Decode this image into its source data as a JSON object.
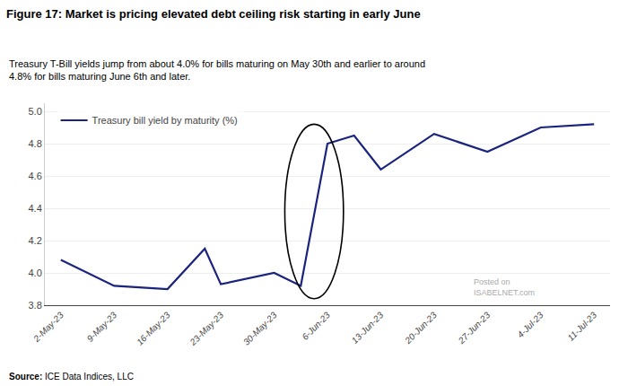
{
  "chart_data": {
    "type": "line",
    "title": "Figure 17: Market is pricing elevated debt ceiling risk starting in early June",
    "subtitle": "Treasury T-Bill yields jump from about 4.0% for bills maturing on May 30th and earlier to around 4.8% for bills maturing June 6th and later.",
    "x": [
      0,
      1,
      2,
      2.7,
      3,
      4,
      4.5,
      5,
      5.5,
      6,
      7,
      8,
      9,
      10
    ],
    "series": [
      {
        "name": "Treasury bill yield by maturity (%)",
        "color": "#1a237e",
        "values": [
          4.08,
          3.92,
          3.9,
          4.15,
          3.93,
          4.0,
          3.92,
          4.8,
          4.85,
          4.64,
          4.86,
          4.75,
          4.9,
          4.92
        ]
      }
    ],
    "xlim": [
      -0.3,
      10.3
    ],
    "xticks": [
      {
        "value": 0,
        "label": "2-May-23"
      },
      {
        "value": 1,
        "label": "9-May-23"
      },
      {
        "value": 2,
        "label": "16-May-23"
      },
      {
        "value": 3,
        "label": "23-May-23"
      },
      {
        "value": 4,
        "label": "30-May-23"
      },
      {
        "value": 5,
        "label": "6-Jun-23"
      },
      {
        "value": 6,
        "label": "13-Jun-23"
      },
      {
        "value": 7,
        "label": "20-Jun-23"
      },
      {
        "value": 8,
        "label": "27-Jun-23"
      },
      {
        "value": 9,
        "label": "4-Jul-23"
      },
      {
        "value": 10,
        "label": "11-Jul-23"
      }
    ],
    "ylim": [
      3.8,
      5.05
    ],
    "yticks": [
      3.8,
      {
        "value": 4.0,
        "label": "4.0"
      },
      4.2,
      4.4,
      4.6,
      4.8,
      {
        "value": 5.0,
        "label": "5.0"
      }
    ],
    "grid": true,
    "legend": "upper left",
    "annotations": [
      "Posted on",
      "ISABELNET.com",
      "Source: ICE Data Indices, LLC"
    ]
  }
}
